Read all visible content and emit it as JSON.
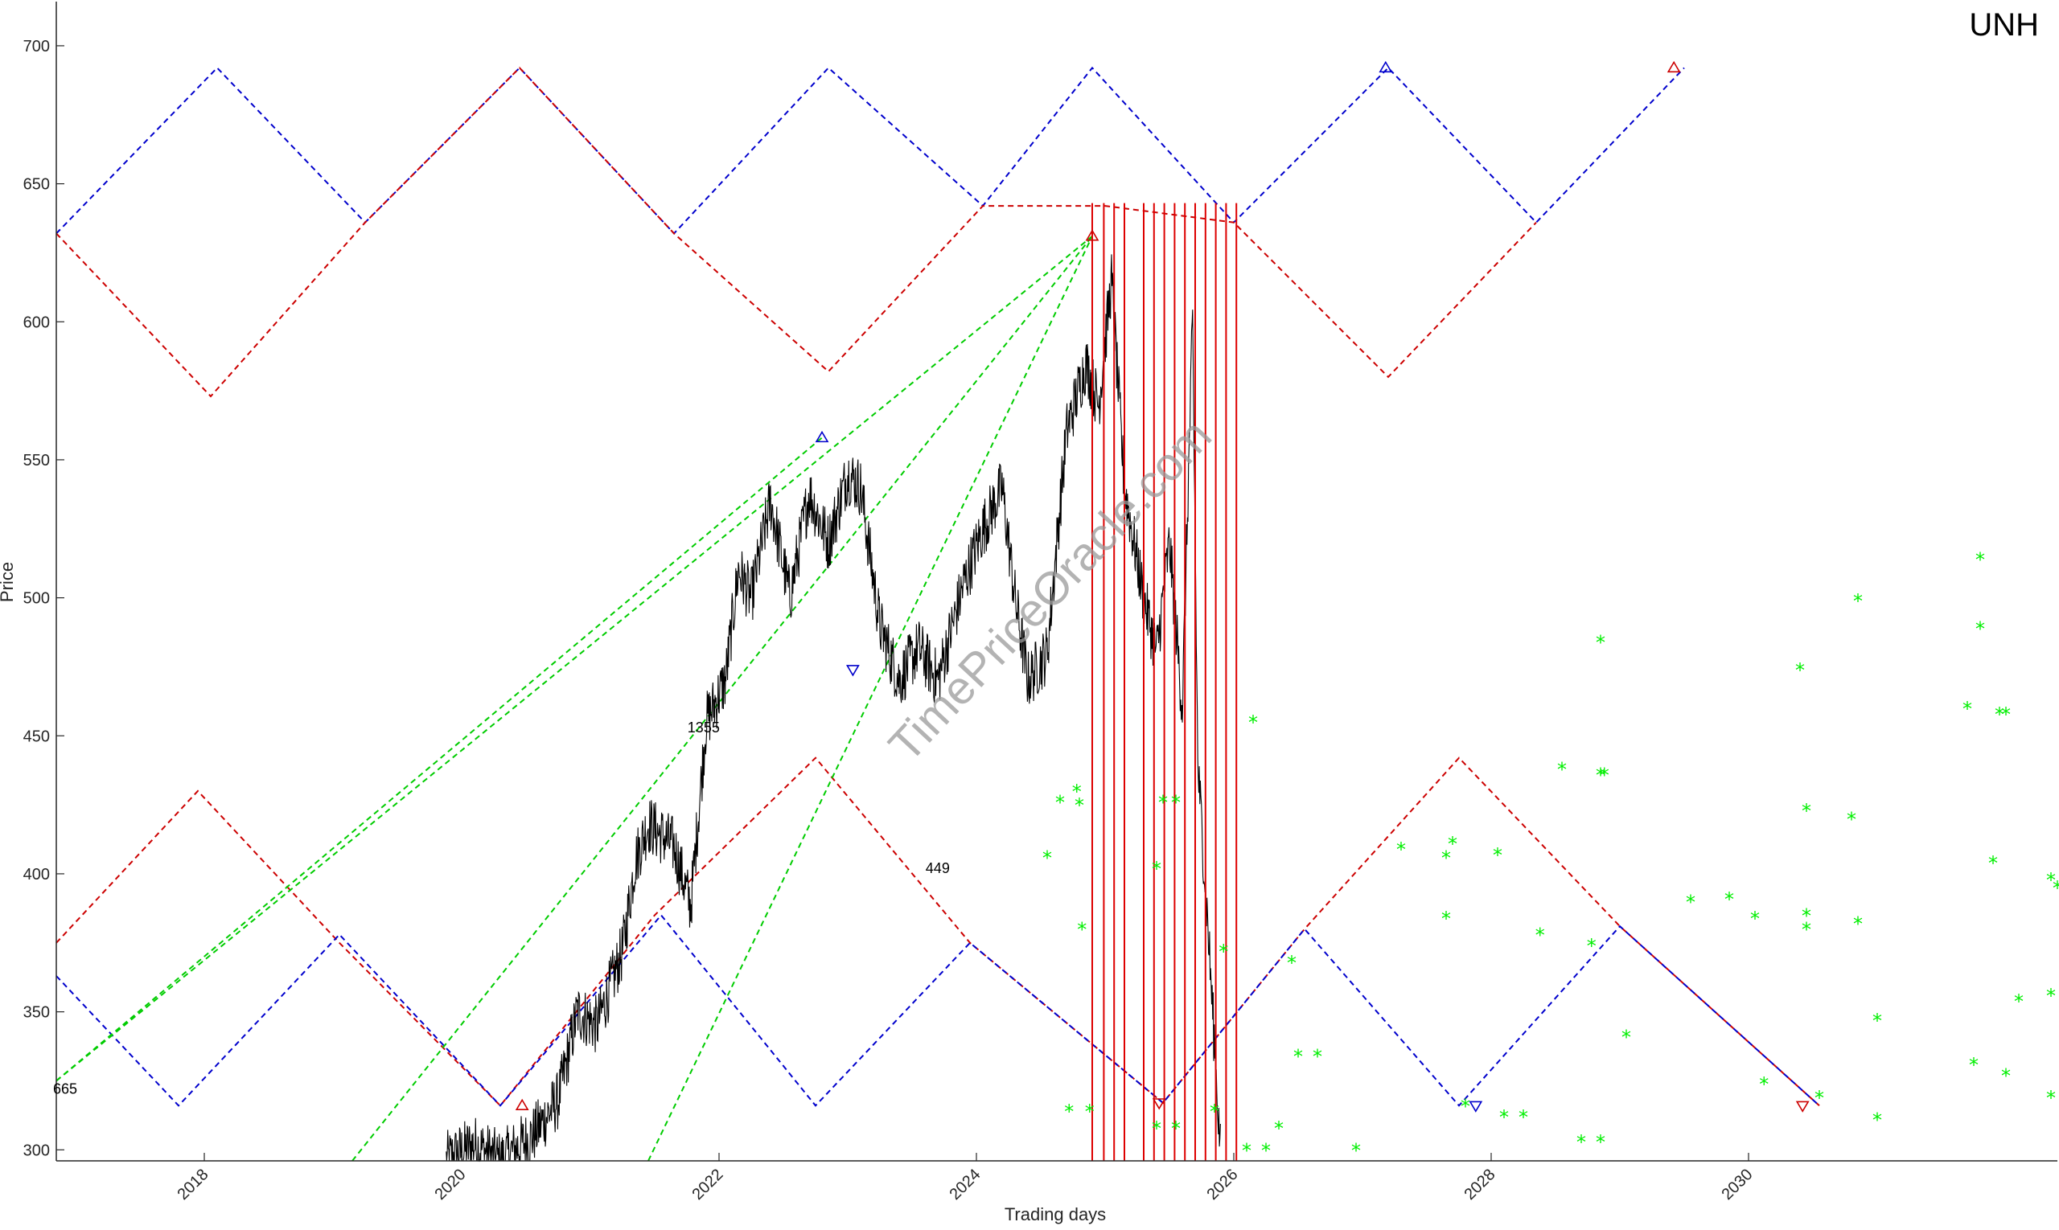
{
  "chart_data": {
    "type": "line",
    "title": "UNH",
    "xlabel": "Trading days",
    "ylabel": "Price",
    "xlim": [
      2016.85,
      2032.4
    ],
    "ylim": [
      296,
      716
    ],
    "x_ticks": [
      2018,
      2020,
      2022,
      2024,
      2026,
      2028,
      2030
    ],
    "y_ticks": [
      300,
      350,
      400,
      450,
      500,
      550,
      600,
      650,
      700
    ],
    "watermark": "TimePriceOracle.com",
    "colors": {
      "price": "#000000",
      "upper_band": "#0000cc",
      "lower_band": "#cc0000",
      "fan": "#00cc00",
      "vlines": "#dd0000",
      "forecast": "#00ee00"
    },
    "annotations": [
      {
        "text": "665",
        "x": 2016.85,
        "y": 322
      },
      {
        "text": "1355",
        "x": 2021.78,
        "y": 453
      },
      {
        "text": "449",
        "x": 2023.63,
        "y": 402
      }
    ],
    "price_series_keypoints": [
      {
        "x": 2019.88,
        "y": 296
      },
      {
        "x": 2020.1,
        "y": 302
      },
      {
        "x": 2020.3,
        "y": 296
      },
      {
        "x": 2020.55,
        "y": 305
      },
      {
        "x": 2020.75,
        "y": 318
      },
      {
        "x": 2020.9,
        "y": 350
      },
      {
        "x": 2021.05,
        "y": 345
      },
      {
        "x": 2021.25,
        "y": 372
      },
      {
        "x": 2021.35,
        "y": 405
      },
      {
        "x": 2021.45,
        "y": 418
      },
      {
        "x": 2021.65,
        "y": 410
      },
      {
        "x": 2021.78,
        "y": 388
      },
      {
        "x": 2021.9,
        "y": 455
      },
      {
        "x": 2022.05,
        "y": 470
      },
      {
        "x": 2022.15,
        "y": 510
      },
      {
        "x": 2022.25,
        "y": 500
      },
      {
        "x": 2022.4,
        "y": 535
      },
      {
        "x": 2022.55,
        "y": 500
      },
      {
        "x": 2022.7,
        "y": 538
      },
      {
        "x": 2022.85,
        "y": 520
      },
      {
        "x": 2023.0,
        "y": 545
      },
      {
        "x": 2023.1,
        "y": 540
      },
      {
        "x": 2023.25,
        "y": 490
      },
      {
        "x": 2023.4,
        "y": 470
      },
      {
        "x": 2023.55,
        "y": 482
      },
      {
        "x": 2023.7,
        "y": 470
      },
      {
        "x": 2023.9,
        "y": 505
      },
      {
        "x": 2024.05,
        "y": 525
      },
      {
        "x": 2024.2,
        "y": 540
      },
      {
        "x": 2024.3,
        "y": 500
      },
      {
        "x": 2024.4,
        "y": 470
      },
      {
        "x": 2024.55,
        "y": 480
      },
      {
        "x": 2024.7,
        "y": 560
      },
      {
        "x": 2024.85,
        "y": 585
      },
      {
        "x": 2024.95,
        "y": 570
      },
      {
        "x": 2025.05,
        "y": 615
      },
      {
        "x": 2025.15,
        "y": 540
      },
      {
        "x": 2025.3,
        "y": 500
      },
      {
        "x": 2025.4,
        "y": 480
      },
      {
        "x": 2025.5,
        "y": 520
      },
      {
        "x": 2025.6,
        "y": 460
      },
      {
        "x": 2025.68,
        "y": 600
      },
      {
        "x": 2025.72,
        "y": 440
      },
      {
        "x": 2025.8,
        "y": 380
      },
      {
        "x": 2025.9,
        "y": 296
      }
    ],
    "upper_band_zigzag": [
      {
        "x": 2016.85,
        "y": 632
      },
      {
        "x": 2018.1,
        "y": 692
      },
      {
        "x": 2019.25,
        "y": 636
      },
      {
        "x": 2020.45,
        "y": 692
      },
      {
        "x": 2021.65,
        "y": 632
      },
      {
        "x": 2022.85,
        "y": 692
      },
      {
        "x": 2024.05,
        "y": 642
      },
      {
        "x": 2024.9,
        "y": 692
      },
      {
        "x": 2026.0,
        "y": 636
      },
      {
        "x": 2027.2,
        "y": 692
      },
      {
        "x": 2028.35,
        "y": 636
      },
      {
        "x": 2029.5,
        "y": 692
      }
    ],
    "lower_band_upper_zigzag": [
      {
        "x": 2016.85,
        "y": 632
      },
      {
        "x": 2018.05,
        "y": 573
      },
      {
        "x": 2019.25,
        "y": 636
      },
      {
        "x": 2020.45,
        "y": 692
      },
      {
        "x": 2021.65,
        "y": 632
      },
      {
        "x": 2022.85,
        "y": 582
      },
      {
        "x": 2024.05,
        "y": 642
      },
      {
        "x": 2025.0,
        "y": 642
      },
      {
        "x": 2026.0,
        "y": 636
      },
      {
        "x": 2027.2,
        "y": 580
      },
      {
        "x": 2028.35,
        "y": 636
      }
    ],
    "lower_red_zigzag": [
      {
        "x": 2016.85,
        "y": 375
      },
      {
        "x": 2017.95,
        "y": 430
      },
      {
        "x": 2019.05,
        "y": 375
      },
      {
        "x": 2020.3,
        "y": 316
      },
      {
        "x": 2021.5,
        "y": 385
      },
      {
        "x": 2022.75,
        "y": 442
      },
      {
        "x": 2023.95,
        "y": 375
      },
      {
        "x": 2025.45,
        "y": 317
      },
      {
        "x": 2026.55,
        "y": 380
      },
      {
        "x": 2027.75,
        "y": 442
      },
      {
        "x": 2029.0,
        "y": 381
      },
      {
        "x": 2030.55,
        "y": 316
      }
    ],
    "lower_blue_zigzag": [
      {
        "x": 2016.85,
        "y": 363
      },
      {
        "x": 2017.8,
        "y": 316
      },
      {
        "x": 2019.05,
        "y": 378
      },
      {
        "x": 2020.3,
        "y": 316
      },
      {
        "x": 2021.55,
        "y": 385
      },
      {
        "x": 2022.75,
        "y": 316
      },
      {
        "x": 2023.95,
        "y": 375
      },
      {
        "x": 2025.45,
        "y": 317
      },
      {
        "x": 2026.55,
        "y": 380
      },
      {
        "x": 2027.75,
        "y": 316
      },
      {
        "x": 2029.0,
        "y": 381
      },
      {
        "x": 2030.55,
        "y": 316
      }
    ],
    "fan_lines": [
      {
        "x1": 2016.85,
        "y1": 325,
        "x2": 2024.9,
        "y2": 631
      },
      {
        "x1": 2019.15,
        "y1": 296,
        "x2": 2024.9,
        "y2": 631
      },
      {
        "x1": 2021.45,
        "y1": 296,
        "x2": 2024.9,
        "y2": 631
      },
      {
        "x1": 2016.85,
        "y1": 325,
        "x2": 2022.8,
        "y2": 558
      }
    ],
    "vertical_lines_x": [
      2024.9,
      2024.99,
      2025.07,
      2025.15,
      2025.3,
      2025.38,
      2025.46,
      2025.54,
      2025.62,
      2025.7,
      2025.78,
      2025.86,
      2025.94,
      2026.02
    ],
    "vertical_lines_top": 643,
    "markers": [
      {
        "shape": "up",
        "color": "#0000cc",
        "x": 2022.8,
        "y": 558
      },
      {
        "shape": "down",
        "color": "#0000cc",
        "x": 2023.04,
        "y": 474
      },
      {
        "shape": "up",
        "color": "#cc0000",
        "x": 2024.9,
        "y": 631
      },
      {
        "shape": "up",
        "color": "#cc0000",
        "x": 2020.47,
        "y": 316
      },
      {
        "shape": "down",
        "color": "#cc0000",
        "x": 2025.42,
        "y": 317
      },
      {
        "shape": "up",
        "color": "#0000cc",
        "x": 2027.18,
        "y": 692
      },
      {
        "shape": "up",
        "color": "#cc0000",
        "x": 2029.42,
        "y": 692
      },
      {
        "shape": "down",
        "color": "#0000cc",
        "x": 2027.88,
        "y": 316
      },
      {
        "shape": "down",
        "color": "#cc0000",
        "x": 2030.42,
        "y": 316
      }
    ],
    "forecast_points": [
      {
        "x": 2024.55,
        "y": 406
      },
      {
        "x": 2024.65,
        "y": 426
      },
      {
        "x": 2024.78,
        "y": 430
      },
      {
        "x": 2024.8,
        "y": 425
      },
      {
        "x": 2024.82,
        "y": 380
      },
      {
        "x": 2024.72,
        "y": 314
      },
      {
        "x": 2024.88,
        "y": 314
      },
      {
        "x": 2025.4,
        "y": 402
      },
      {
        "x": 2025.45,
        "y": 426
      },
      {
        "x": 2025.55,
        "y": 426
      },
      {
        "x": 2025.4,
        "y": 308
      },
      {
        "x": 2025.55,
        "y": 308
      },
      {
        "x": 2025.85,
        "y": 314
      },
      {
        "x": 2025.92,
        "y": 372
      },
      {
        "x": 2026.1,
        "y": 300
      },
      {
        "x": 2026.25,
        "y": 300
      },
      {
        "x": 2026.15,
        "y": 455
      },
      {
        "x": 2026.35,
        "y": 308
      },
      {
        "x": 2026.45,
        "y": 368
      },
      {
        "x": 2026.5,
        "y": 334
      },
      {
        "x": 2026.65,
        "y": 334
      },
      {
        "x": 2026.95,
        "y": 300
      },
      {
        "x": 2027.3,
        "y": 409
      },
      {
        "x": 2027.65,
        "y": 406
      },
      {
        "x": 2027.65,
        "y": 384
      },
      {
        "x": 2027.7,
        "y": 411
      },
      {
        "x": 2027.8,
        "y": 316
      },
      {
        "x": 2028.05,
        "y": 407
      },
      {
        "x": 2028.1,
        "y": 312
      },
      {
        "x": 2028.25,
        "y": 312
      },
      {
        "x": 2028.38,
        "y": 378
      },
      {
        "x": 2028.55,
        "y": 438
      },
      {
        "x": 2028.7,
        "y": 303
      },
      {
        "x": 2028.78,
        "y": 374
      },
      {
        "x": 2028.85,
        "y": 484
      },
      {
        "x": 2028.85,
        "y": 436
      },
      {
        "x": 2028.88,
        "y": 436
      },
      {
        "x": 2028.85,
        "y": 303
      },
      {
        "x": 2029.05,
        "y": 341
      },
      {
        "x": 2029.55,
        "y": 390
      },
      {
        "x": 2029.85,
        "y": 391
      },
      {
        "x": 2030.05,
        "y": 384
      },
      {
        "x": 2030.12,
        "y": 324
      },
      {
        "x": 2030.4,
        "y": 474
      },
      {
        "x": 2030.45,
        "y": 423
      },
      {
        "x": 2030.45,
        "y": 385
      },
      {
        "x": 2030.45,
        "y": 380
      },
      {
        "x": 2030.55,
        "y": 319
      },
      {
        "x": 2030.8,
        "y": 420
      },
      {
        "x": 2030.85,
        "y": 382
      },
      {
        "x": 2030.85,
        "y": 499
      },
      {
        "x": 2031.0,
        "y": 347
      },
      {
        "x": 2031.0,
        "y": 311
      },
      {
        "x": 2031.7,
        "y": 460
      },
      {
        "x": 2031.75,
        "y": 331
      },
      {
        "x": 2031.8,
        "y": 514
      },
      {
        "x": 2031.8,
        "y": 489
      },
      {
        "x": 2031.9,
        "y": 404
      },
      {
        "x": 2031.95,
        "y": 458
      },
      {
        "x": 2032.0,
        "y": 458
      },
      {
        "x": 2032.0,
        "y": 327
      },
      {
        "x": 2032.1,
        "y": 354
      },
      {
        "x": 2032.35,
        "y": 356
      },
      {
        "x": 2032.35,
        "y": 398
      },
      {
        "x": 2032.35,
        "y": 319
      },
      {
        "x": 2032.4,
        "y": 395
      }
    ]
  }
}
